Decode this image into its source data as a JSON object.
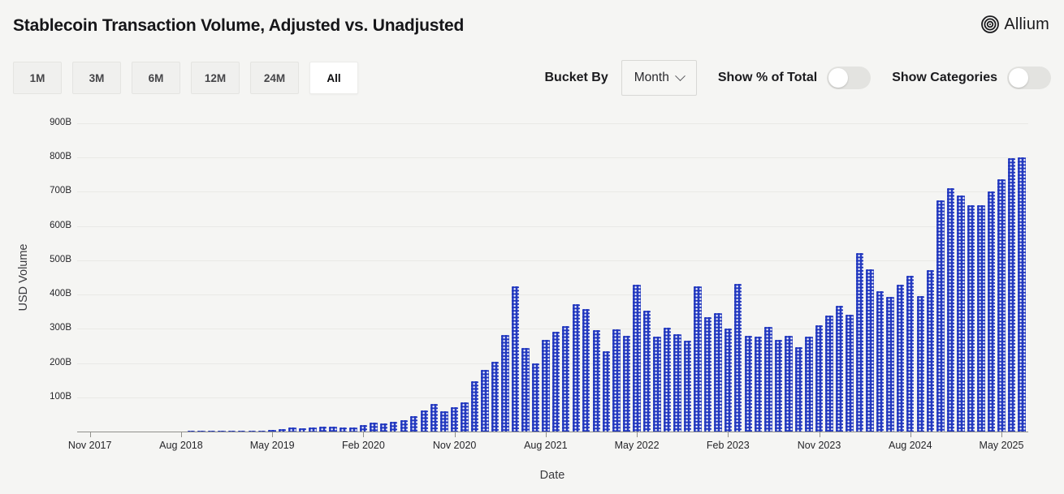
{
  "header": {
    "title": "Stablecoin Transaction Volume, Adjusted vs. Unadjusted",
    "brand": "Allium"
  },
  "controls": {
    "ranges": [
      {
        "label": "1M",
        "active": false
      },
      {
        "label": "3M",
        "active": false
      },
      {
        "label": "6M",
        "active": false
      },
      {
        "label": "12M",
        "active": false
      },
      {
        "label": "24M",
        "active": false
      },
      {
        "label": "All",
        "active": true
      }
    ],
    "bucket_by": {
      "label": "Bucket By",
      "value": "Month"
    },
    "toggles": [
      {
        "label": "Show % of Total",
        "on": false
      },
      {
        "label": "Show Categories",
        "on": false
      }
    ]
  },
  "chart_data": {
    "type": "bar",
    "title": "Stablecoin Transaction Volume, Adjusted vs. Unadjusted",
    "xlabel": "Date",
    "ylabel": "USD Volume",
    "unit": "B (USD)",
    "ylim": [
      0,
      900
    ],
    "grid": true,
    "legend": "none",
    "bar_color": "#2339bf",
    "bar_pattern": "white-dot-grid",
    "y_ticks": [
      "100B",
      "200B",
      "300B",
      "400B",
      "500B",
      "600B",
      "700B",
      "800B",
      "900B"
    ],
    "x_tick_labels": [
      "Nov 2017",
      "Aug 2018",
      "May 2019",
      "Feb 2020",
      "Nov 2020",
      "Aug 2021",
      "May 2022",
      "Feb 2023",
      "Nov 2023",
      "Aug 2024",
      "May 2025"
    ],
    "x_tick_every": 9,
    "months": [
      {
        "m": "Nov 2017",
        "v": 0.4
      },
      {
        "m": "Dec 2017",
        "v": 0.6
      },
      {
        "m": "Jan 2018",
        "v": 0.7
      },
      {
        "m": "Feb 2018",
        "v": 0.5
      },
      {
        "m": "Mar 2018",
        "v": 0.6
      },
      {
        "m": "Apr 2018",
        "v": 0.7
      },
      {
        "m": "May 2018",
        "v": 0.8
      },
      {
        "m": "Jun 2018",
        "v": 0.9
      },
      {
        "m": "Jul 2018",
        "v": 1
      },
      {
        "m": "Aug 2018",
        "v": 1
      },
      {
        "m": "Sep 2018",
        "v": 1.2
      },
      {
        "m": "Oct 2018",
        "v": 1.5
      },
      {
        "m": "Nov 2018",
        "v": 1.8
      },
      {
        "m": "Dec 2018",
        "v": 2
      },
      {
        "m": "Jan 2019",
        "v": 2
      },
      {
        "m": "Feb 2019",
        "v": 2
      },
      {
        "m": "Mar 2019",
        "v": 2.2
      },
      {
        "m": "Apr 2019",
        "v": 3
      },
      {
        "m": "May 2019",
        "v": 4
      },
      {
        "m": "Jun 2019",
        "v": 7
      },
      {
        "m": "Jul 2019",
        "v": 11
      },
      {
        "m": "Aug 2019",
        "v": 9
      },
      {
        "m": "Sep 2019",
        "v": 12
      },
      {
        "m": "Oct 2019",
        "v": 14
      },
      {
        "m": "Nov 2019",
        "v": 14
      },
      {
        "m": "Dec 2019",
        "v": 12
      },
      {
        "m": "Jan 2020",
        "v": 12
      },
      {
        "m": "Feb 2020",
        "v": 18
      },
      {
        "m": "Mar 2020",
        "v": 26
      },
      {
        "m": "Apr 2020",
        "v": 23
      },
      {
        "m": "May 2020",
        "v": 29
      },
      {
        "m": "Jun 2020",
        "v": 34
      },
      {
        "m": "Jul 2020",
        "v": 45
      },
      {
        "m": "Aug 2020",
        "v": 61
      },
      {
        "m": "Sep 2020",
        "v": 80
      },
      {
        "m": "Oct 2020",
        "v": 60
      },
      {
        "m": "Nov 2020",
        "v": 72
      },
      {
        "m": "Dec 2020",
        "v": 85
      },
      {
        "m": "Jan 2021",
        "v": 148
      },
      {
        "m": "Feb 2021",
        "v": 181
      },
      {
        "m": "Mar 2021",
        "v": 204
      },
      {
        "m": "Apr 2021",
        "v": 281
      },
      {
        "m": "May 2021",
        "v": 425
      },
      {
        "m": "Jun 2021",
        "v": 244
      },
      {
        "m": "Jul 2021",
        "v": 198
      },
      {
        "m": "Aug 2021",
        "v": 267
      },
      {
        "m": "Sep 2021",
        "v": 291
      },
      {
        "m": "Oct 2021",
        "v": 309
      },
      {
        "m": "Nov 2021",
        "v": 372
      },
      {
        "m": "Dec 2021",
        "v": 358
      },
      {
        "m": "Jan 2022",
        "v": 295
      },
      {
        "m": "Feb 2022",
        "v": 234
      },
      {
        "m": "Mar 2022",
        "v": 298
      },
      {
        "m": "Apr 2022",
        "v": 279
      },
      {
        "m": "May 2022",
        "v": 429
      },
      {
        "m": "Jun 2022",
        "v": 352
      },
      {
        "m": "Jul 2022",
        "v": 277
      },
      {
        "m": "Aug 2022",
        "v": 303
      },
      {
        "m": "Sep 2022",
        "v": 284
      },
      {
        "m": "Oct 2022",
        "v": 265
      },
      {
        "m": "Nov 2022",
        "v": 425
      },
      {
        "m": "Dec 2022",
        "v": 335
      },
      {
        "m": "Jan 2023",
        "v": 346
      },
      {
        "m": "Feb 2023",
        "v": 301
      },
      {
        "m": "Mar 2023",
        "v": 431
      },
      {
        "m": "Apr 2023",
        "v": 279
      },
      {
        "m": "May 2023",
        "v": 276
      },
      {
        "m": "Jun 2023",
        "v": 306
      },
      {
        "m": "Jul 2023",
        "v": 267
      },
      {
        "m": "Aug 2023",
        "v": 279
      },
      {
        "m": "Sep 2023",
        "v": 247
      },
      {
        "m": "Oct 2023",
        "v": 277
      },
      {
        "m": "Nov 2023",
        "v": 311
      },
      {
        "m": "Dec 2023",
        "v": 338
      },
      {
        "m": "Jan 2024",
        "v": 366
      },
      {
        "m": "Feb 2024",
        "v": 340
      },
      {
        "m": "Mar 2024",
        "v": 522
      },
      {
        "m": "Apr 2024",
        "v": 474
      },
      {
        "m": "May 2024",
        "v": 410
      },
      {
        "m": "Jun 2024",
        "v": 393
      },
      {
        "m": "Jul 2024",
        "v": 429
      },
      {
        "m": "Aug 2024",
        "v": 455
      },
      {
        "m": "Sep 2024",
        "v": 396
      },
      {
        "m": "Oct 2024",
        "v": 472
      },
      {
        "m": "Nov 2024",
        "v": 675
      },
      {
        "m": "Dec 2024",
        "v": 710
      },
      {
        "m": "Jan 2025",
        "v": 690
      },
      {
        "m": "Feb 2025",
        "v": 660
      },
      {
        "m": "Mar 2025",
        "v": 660
      },
      {
        "m": "Apr 2025",
        "v": 700
      },
      {
        "m": "May 2025",
        "v": 737
      },
      {
        "m": "Jun 2025",
        "v": 798
      },
      {
        "m": "Jul 2025",
        "v": 800
      }
    ]
  }
}
